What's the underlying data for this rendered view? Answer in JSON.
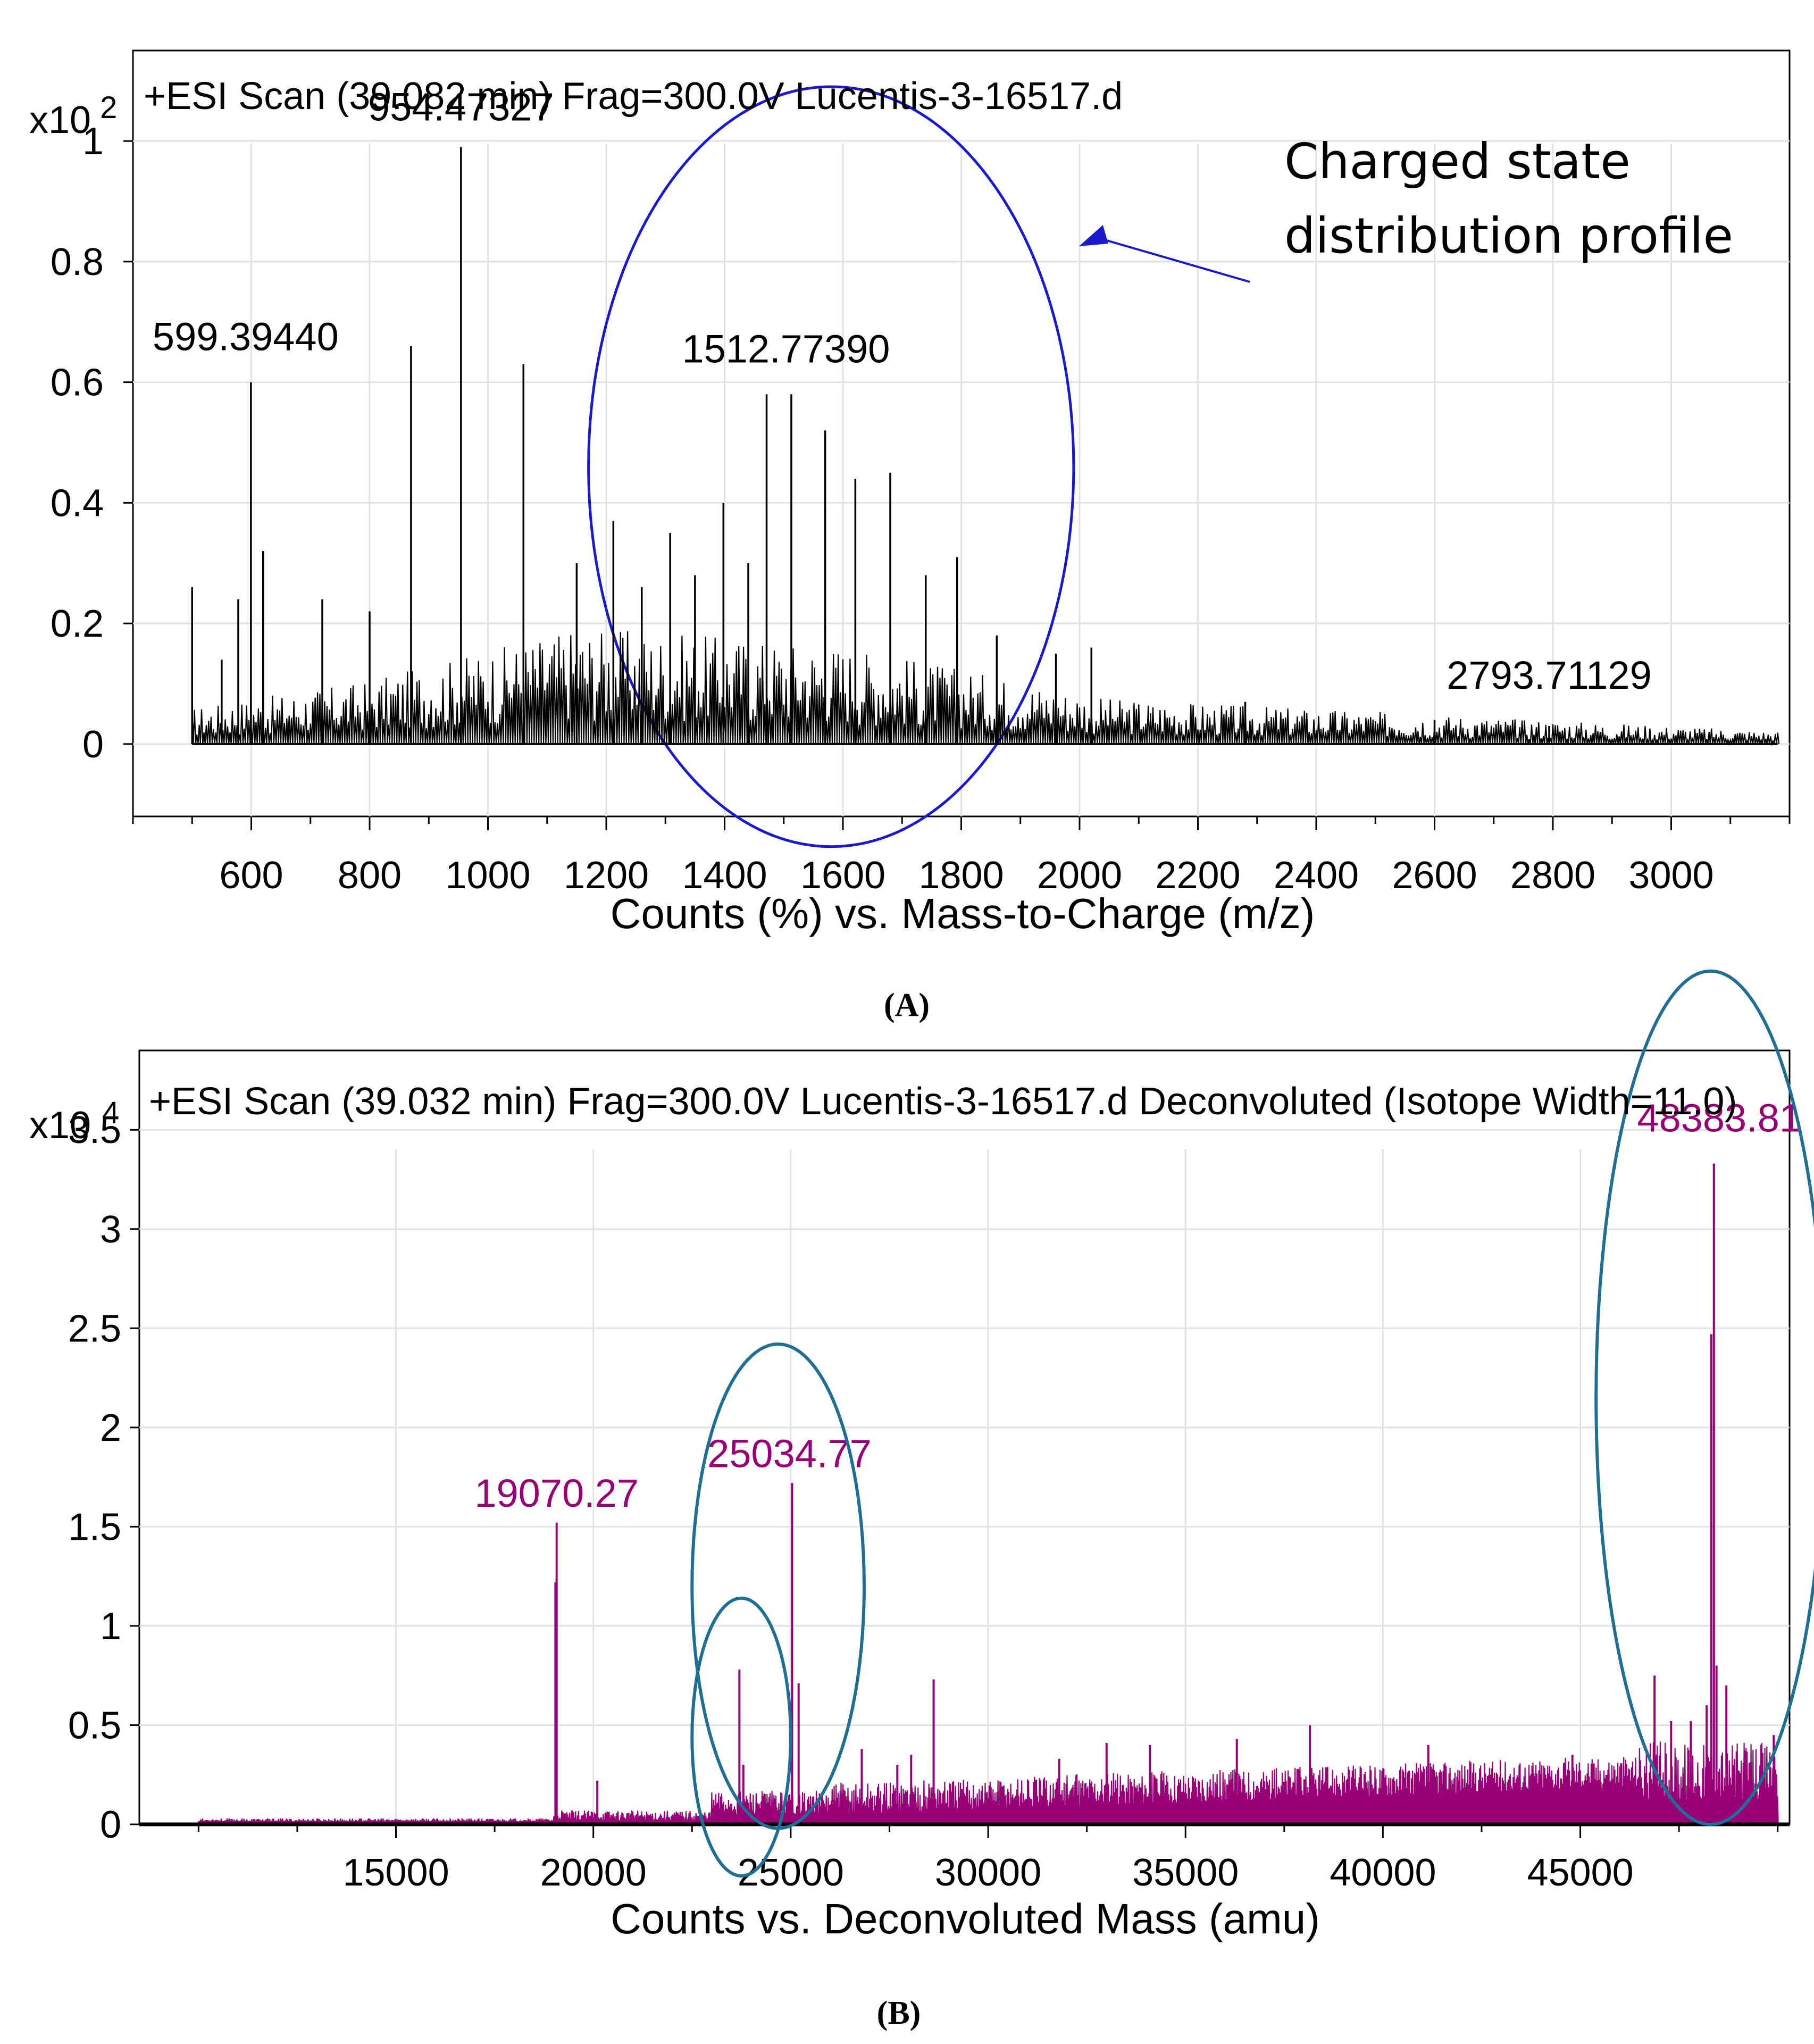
{
  "chart_data": [
    {
      "panel": "(A)",
      "type": "line",
      "title": "+ESI Scan (39.082 min) Frag=300.0V Lucentis-3-16517.d",
      "xlabel": "Counts (%) vs. Mass-to-Charge (m/z)",
      "y_scale_label": "x10",
      "y_scale_exp": "2",
      "xlim": [
        400,
        3200
      ],
      "ylim": [
        -0.12,
        1.15
      ],
      "x_ticks": [
        "600",
        "800",
        "1000",
        "1200",
        "1400",
        "1600",
        "1800",
        "2000",
        "2200",
        "2400",
        "2600",
        "2800",
        "3000"
      ],
      "y_ticks": [
        "0",
        "0.2",
        "0.4",
        "0.6",
        "0.8",
        "1"
      ],
      "line_color": "#000000",
      "peaks": [
        {
          "x": 500,
          "y": 0.26
        },
        {
          "x": 550,
          "y": 0.14
        },
        {
          "x": 578,
          "y": 0.24
        },
        {
          "x": 599.4,
          "y": 0.6
        },
        {
          "x": 620,
          "y": 0.32
        },
        {
          "x": 720,
          "y": 0.24
        },
        {
          "x": 800,
          "y": 0.22
        },
        {
          "x": 870,
          "y": 0.66
        },
        {
          "x": 954.47,
          "y": 0.99
        },
        {
          "x": 1060,
          "y": 0.63
        },
        {
          "x": 1150,
          "y": 0.3
        },
        {
          "x": 1212,
          "y": 0.37
        },
        {
          "x": 1260,
          "y": 0.26
        },
        {
          "x": 1308,
          "y": 0.35
        },
        {
          "x": 1350,
          "y": 0.28
        },
        {
          "x": 1398,
          "y": 0.4
        },
        {
          "x": 1440,
          "y": 0.3
        },
        {
          "x": 1471,
          "y": 0.58
        },
        {
          "x": 1512.77,
          "y": 0.58
        },
        {
          "x": 1570,
          "y": 0.52
        },
        {
          "x": 1621,
          "y": 0.44
        },
        {
          "x": 1680,
          "y": 0.45
        },
        {
          "x": 1740,
          "y": 0.28
        },
        {
          "x": 1793,
          "y": 0.31
        },
        {
          "x": 1860,
          "y": 0.18
        },
        {
          "x": 1960,
          "y": 0.15
        },
        {
          "x": 2020,
          "y": 0.16
        },
        {
          "x": 2280,
          "y": 0.07
        },
        {
          "x": 2600,
          "y": 0.04
        },
        {
          "x": 2793.71,
          "y": 0.03
        }
      ],
      "peak_labels": [
        {
          "text": "954.47327",
          "x": 954.47,
          "y": 0.99
        },
        {
          "text": "599.39440",
          "x": 599.4,
          "y": 0.6
        },
        {
          "text": "1512.77390",
          "x": 1512.77,
          "y": 0.58
        },
        {
          "text": "2793.71129",
          "x": 2793.71,
          "y": 0.03
        }
      ],
      "annotation": {
        "lines": [
          "Charged state",
          "distribution profile"
        ],
        "ellipse_color": "#1a1acc",
        "center": {
          "x": 1580,
          "y": 0.46
        },
        "radius": {
          "x": 410,
          "y": 0.63
        }
      }
    },
    {
      "panel": "(B)",
      "type": "line",
      "title": "+ESI Scan (39.032 min) Frag=300.0V Lucentis-3-16517.d  Deconvoluted (Isotope Width=11.0)",
      "xlabel": "Counts vs. Deconvoluted Mass (amu)",
      "y_scale_label": "x10",
      "y_scale_exp": "4",
      "xlim": [
        8500,
        50300
      ],
      "ylim": [
        0,
        3.9
      ],
      "x_ticks": [
        "15000",
        "20000",
        "25000",
        "30000",
        "35000",
        "40000",
        "45000"
      ],
      "y_ticks": [
        "0",
        "0.5",
        "1",
        "1.5",
        "2",
        "2.5",
        "3",
        "3.5"
      ],
      "line_color": "#990077",
      "peaks": [
        {
          "x": 19070.27,
          "y": 1.52
        },
        {
          "x": 19040,
          "y": 1.22
        },
        {
          "x": 20100,
          "y": 0.22
        },
        {
          "x": 23700,
          "y": 0.78
        },
        {
          "x": 23800,
          "y": 0.3
        },
        {
          "x": 25034.77,
          "y": 1.72
        },
        {
          "x": 25200,
          "y": 0.71
        },
        {
          "x": 26800,
          "y": 0.38
        },
        {
          "x": 27700,
          "y": 0.3
        },
        {
          "x": 28050,
          "y": 0.35
        },
        {
          "x": 28620,
          "y": 0.73
        },
        {
          "x": 31800,
          "y": 0.33
        },
        {
          "x": 33000,
          "y": 0.41
        },
        {
          "x": 34100,
          "y": 0.4
        },
        {
          "x": 36300,
          "y": 0.43
        },
        {
          "x": 38150,
          "y": 0.5
        },
        {
          "x": 41150,
          "y": 0.4
        },
        {
          "x": 44800,
          "y": 0.35
        },
        {
          "x": 46880,
          "y": 0.75
        },
        {
          "x": 47300,
          "y": 0.52
        },
        {
          "x": 47800,
          "y": 0.52
        },
        {
          "x": 48200,
          "y": 0.6
        },
        {
          "x": 48320,
          "y": 2.47
        },
        {
          "x": 48383.81,
          "y": 3.33
        },
        {
          "x": 48450,
          "y": 0.8
        },
        {
          "x": 48700,
          "y": 0.7
        },
        {
          "x": 49900,
          "y": 0.45
        }
      ],
      "peak_labels": [
        {
          "text": "48383.81",
          "x": 48383.81,
          "y": 3.33
        },
        {
          "text": "25034.77",
          "x": 25034.77,
          "y": 1.72
        },
        {
          "text": "19070.27",
          "x": 19070.27,
          "y": 1.52
        }
      ],
      "annotation": {
        "ellipse_color": "#1f6f94",
        "ellipses": [
          {
            "center": {
              "x": 24680,
              "y": 1.2
            },
            "radius": {
              "x": 2180,
              "y": 1.22
            }
          },
          {
            "center": {
              "x": 23750,
              "y": 0.44
            },
            "radius": {
              "x": 1250,
              "y": 0.7
            }
          },
          {
            "center": {
              "x": 48300,
              "y": 2.15
            },
            "radius": {
              "x": 2900,
              "y": 2.15
            }
          }
        ]
      }
    }
  ]
}
